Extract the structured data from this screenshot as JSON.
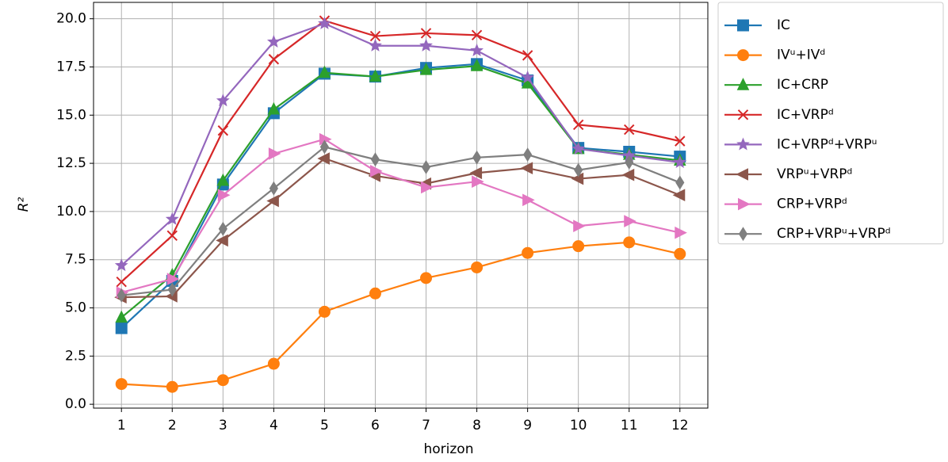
{
  "chart_data": {
    "type": "line",
    "xlabel": "horizon",
    "ylabel": "R²",
    "x": [
      1,
      2,
      3,
      4,
      5,
      6,
      7,
      8,
      9,
      10,
      11,
      12
    ],
    "xlim": [
      0.45,
      12.55
    ],
    "ylim": [
      -0.2,
      20.85
    ],
    "xticks": [
      1,
      2,
      3,
      4,
      5,
      6,
      7,
      8,
      9,
      10,
      11,
      12
    ],
    "yticks": [
      {
        "value": 0,
        "label": "0.0"
      },
      2.5,
      {
        "value": 5,
        "label": "5.0"
      },
      7.5,
      {
        "value": 10,
        "label": "10.0"
      },
      12.5,
      {
        "value": 15,
        "label": "15.0"
      },
      17.5,
      {
        "value": 20,
        "label": "20.0"
      }
    ],
    "grid": true,
    "legend": "outside upper right",
    "series": [
      {
        "name": "IC",
        "color": "#1f77b4",
        "marker": "square",
        "values": [
          3.95,
          6.4,
          11.4,
          15.1,
          17.15,
          17.0,
          17.45,
          17.65,
          16.8,
          13.3,
          13.1,
          12.85
        ]
      },
      {
        "name": "IVᵘ+IVᵈ",
        "color": "#ff7f0e",
        "marker": "circle",
        "values": [
          1.05,
          0.9,
          1.25,
          2.1,
          4.8,
          5.75,
          6.55,
          7.1,
          7.85,
          8.2,
          8.4,
          7.8
        ]
      },
      {
        "name": "IC+CRP",
        "color": "#2ca02c",
        "marker": "triangle-up",
        "values": [
          4.5,
          6.7,
          11.6,
          15.3,
          17.2,
          17.0,
          17.35,
          17.55,
          16.65,
          13.25,
          12.95,
          12.65
        ]
      },
      {
        "name": "IC+VRPᵈ",
        "color": "#d62728",
        "marker": "x",
        "values": [
          6.35,
          8.75,
          14.2,
          17.9,
          19.9,
          19.1,
          19.25,
          19.15,
          18.1,
          14.5,
          14.25,
          13.65
        ]
      },
      {
        "name": "IC+VRPᵈ+VRPᵘ",
        "color": "#9467bd",
        "marker": "star",
        "values": [
          7.2,
          9.6,
          15.75,
          18.8,
          19.75,
          18.6,
          18.6,
          18.35,
          16.95,
          13.25,
          12.9,
          12.55
        ]
      },
      {
        "name": "VRPᵘ+VRPᵈ",
        "color": "#8c564b",
        "marker": "triangle-left",
        "values": [
          5.55,
          5.6,
          8.5,
          10.55,
          12.75,
          11.85,
          11.45,
          12.0,
          12.25,
          11.7,
          11.9,
          10.85
        ]
      },
      {
        "name": "CRP+VRPᵈ",
        "color": "#e377c2",
        "marker": "triangle-right",
        "values": [
          5.8,
          6.5,
          10.85,
          13.0,
          13.75,
          12.1,
          11.25,
          11.55,
          10.6,
          9.25,
          9.5,
          8.9
        ]
      },
      {
        "name": "CRP+VRPᵘ+VRPᵈ",
        "color": "#7f7f7f",
        "marker": "thin-diamond",
        "values": [
          5.65,
          5.95,
          9.1,
          11.2,
          13.35,
          12.7,
          12.3,
          12.8,
          12.95,
          12.15,
          12.55,
          11.5
        ]
      }
    ]
  }
}
